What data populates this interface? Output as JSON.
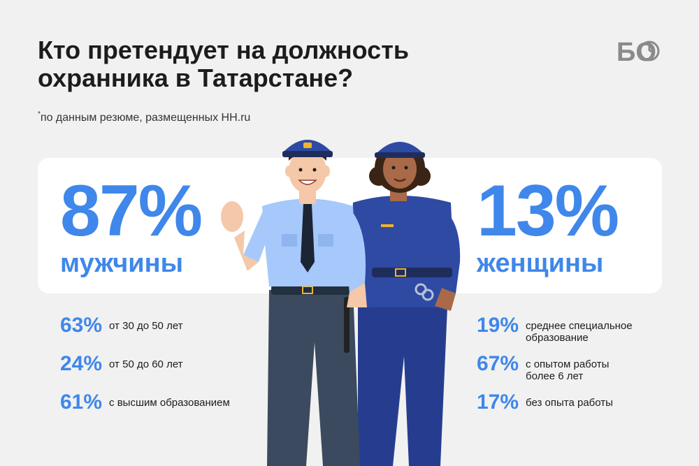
{
  "title_lines": [
    "Кто претендует на должность",
    "охранника в Татарстане?"
  ],
  "note": {
    "marker": "*",
    "text": "по данным резюме, размещенных HH.ru"
  },
  "logo": {
    "text": "БО",
    "icon": "clock-icon"
  },
  "men": {
    "percent": "87%",
    "label": "мужчины",
    "stats": [
      {
        "pct": "63%",
        "text": "от 30 до 50 лет"
      },
      {
        "pct": "24%",
        "text": "от 50 до 60 лет"
      },
      {
        "pct": "61%",
        "text": "с высшим образованием"
      }
    ]
  },
  "women": {
    "percent": "13%",
    "label": "женщины",
    "stats": [
      {
        "pct": "19%",
        "text": "среднее специальное образование"
      },
      {
        "pct": "67%",
        "text": "с опытом работы более 6 лет"
      },
      {
        "pct": "17%",
        "text": "без опыта работы"
      }
    ]
  },
  "colors": {
    "accent": "#3f87ea",
    "background": "#f1f1f1",
    "panel": "#ffffff"
  }
}
